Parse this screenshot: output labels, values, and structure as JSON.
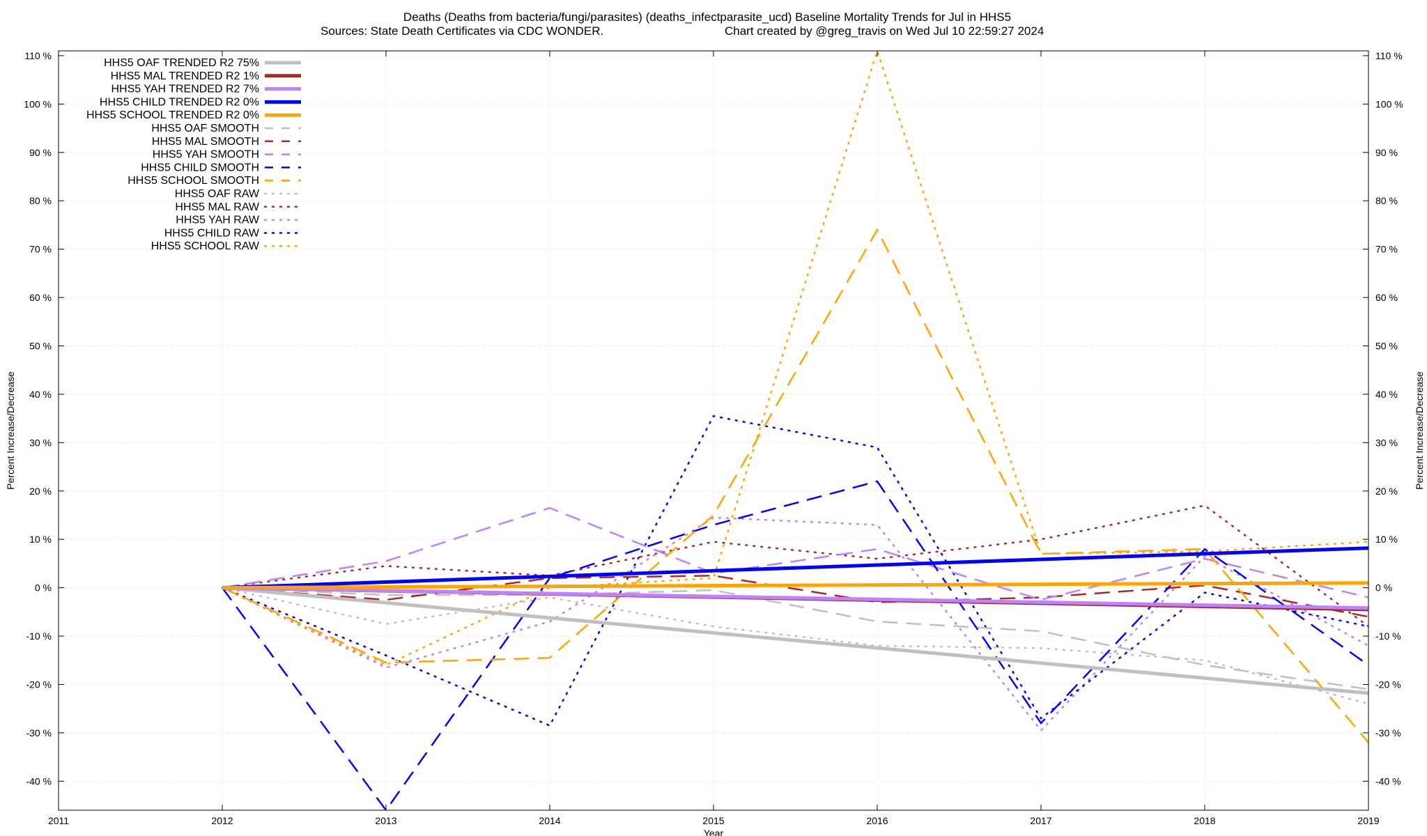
{
  "chart_data": {
    "type": "line",
    "title": "Deaths (Deaths from bacteria/fungi/parasites) (deaths_infectparasite_ucd)  Baseline Mortality Trends for Jul in HHS5",
    "subtitle_left": "Sources: State Death Certificates via CDC WONDER.",
    "subtitle_right": "Chart created by @greg_travis on Wed Jul 10 22:59:27 2024",
    "xlabel": "Year",
    "ylabel": "Percent Increase/Decrease",
    "xlim": [
      2011,
      2019
    ],
    "ylim": [
      -46,
      111
    ],
    "x_ticks": [
      2011,
      2012,
      2013,
      2014,
      2015,
      2016,
      2017,
      2018,
      2019
    ],
    "y_ticks": [
      -40,
      -30,
      -20,
      -10,
      0,
      10,
      20,
      30,
      40,
      50,
      60,
      70,
      80,
      90,
      100,
      110
    ],
    "y_tick_suffix": " %",
    "grid": true,
    "legend_position": "top-left",
    "series": [
      {
        "name": "HHS5 OAF TRENDED R2  75%",
        "color": "#c0c0c0",
        "style": "solid",
        "width": 5,
        "x": [
          2012,
          2019
        ],
        "y": [
          0,
          -21.8
        ]
      },
      {
        "name": "HHS5 MAL TRENDED R2   1%",
        "color": "#a52a2a",
        "style": "solid",
        "width": 5,
        "x": [
          2012,
          2019
        ],
        "y": [
          0,
          -4.5
        ]
      },
      {
        "name": "HHS5 YAH TRENDED R2   7%",
        "color": "#c080ff",
        "style": "solid",
        "width": 5,
        "x": [
          2012,
          2019
        ],
        "y": [
          0,
          -4.2
        ]
      },
      {
        "name": "HHS5 CHILD TRENDED R2   0%",
        "color": "#0000ff",
        "style": "solid",
        "width": 5,
        "x": [
          2012,
          2019
        ],
        "y": [
          0,
          8.2
        ]
      },
      {
        "name": "HHS5 SCHOOL TRENDED R2   0%",
        "color": "#ffa500",
        "style": "solid",
        "width": 5,
        "x": [
          2012,
          2019
        ],
        "y": [
          0,
          1
        ]
      },
      {
        "name": "HHS5 OAF SMOOTH",
        "color": "#c0c0c0",
        "style": "dashed",
        "width": 2.5,
        "x": [
          2012,
          2013,
          2014,
          2015,
          2016,
          2017,
          2018,
          2019
        ],
        "y": [
          0,
          -1.5,
          -1.5,
          -0.5,
          -7,
          -9,
          -16,
          -21
        ]
      },
      {
        "name": "HHS5 MAL SMOOTH",
        "color": "#a52a2a",
        "style": "dashed",
        "width": 2.5,
        "x": [
          2012,
          2013,
          2014,
          2015,
          2016,
          2017,
          2018,
          2019
        ],
        "y": [
          0,
          -2.5,
          2,
          2.5,
          -3,
          -2,
          0.5,
          -6
        ]
      },
      {
        "name": "HHS5 YAH SMOOTH",
        "color": "#c080ff",
        "style": "dashed",
        "width": 2.5,
        "x": [
          2012,
          2013,
          2014,
          2015,
          2016,
          2017,
          2018,
          2019
        ],
        "y": [
          0,
          5.5,
          16.5,
          3,
          8,
          -2.5,
          6,
          -2
        ]
      },
      {
        "name": "HHS5 CHILD SMOOTH",
        "color": "#0000ff",
        "style": "dashed",
        "width": 2.5,
        "x": [
          2012,
          2013,
          2014,
          2015,
          2016,
          2017,
          2018,
          2019
        ],
        "y": [
          0,
          -46,
          2,
          13,
          22,
          -28,
          8,
          -16
        ]
      },
      {
        "name": "HHS5 SCHOOL SMOOTH",
        "color": "#ffa500",
        "style": "dashed",
        "width": 2.5,
        "x": [
          2012,
          2013,
          2014,
          2015,
          2016,
          2017,
          2018,
          2019
        ],
        "y": [
          0,
          -15.5,
          -14.5,
          15,
          74,
          7,
          8,
          -32
        ]
      },
      {
        "name": "HHS5 OAF RAW",
        "color": "#c0c0c0",
        "style": "dotted",
        "width": 2.5,
        "x": [
          2012,
          2013,
          2014,
          2015,
          2016,
          2017,
          2018,
          2019
        ],
        "y": [
          0,
          -7.5,
          -2,
          -8,
          -12,
          -12.5,
          -15,
          -24
        ]
      },
      {
        "name": "HHS5 MAL RAW",
        "color": "#a52a2a",
        "style": "dotted",
        "width": 2.5,
        "x": [
          2012,
          2013,
          2014,
          2015,
          2016,
          2017,
          2018,
          2019
        ],
        "y": [
          0,
          4.5,
          2.5,
          9.5,
          6,
          10,
          17,
          -8
        ]
      },
      {
        "name": "HHS5 YAH RAW",
        "color": "#c080ff",
        "style": "dotted",
        "width": 2.5,
        "x": [
          2012,
          2013,
          2014,
          2015,
          2016,
          2017,
          2018,
          2019
        ],
        "y": [
          0,
          -16.5,
          -7,
          14.5,
          13,
          -29.5,
          6.5,
          -12
        ]
      },
      {
        "name": "HHS5 CHILD RAW",
        "color": "#0000ff",
        "style": "dotted",
        "width": 2.5,
        "x": [
          2012,
          2013,
          2014,
          2015,
          2016,
          2017,
          2018,
          2019
        ],
        "y": [
          0,
          -14,
          -28.5,
          35.5,
          29,
          -27,
          -1,
          -8
        ]
      },
      {
        "name": "HHS5 SCHOOL RAW",
        "color": "#ffa500",
        "style": "dotted",
        "width": 2.5,
        "x": [
          2012,
          2013,
          2014,
          2015,
          2016,
          2017,
          2018,
          2019
        ],
        "y": [
          0,
          -16,
          0,
          2,
          111,
          7,
          7.5,
          9.5
        ]
      }
    ]
  }
}
